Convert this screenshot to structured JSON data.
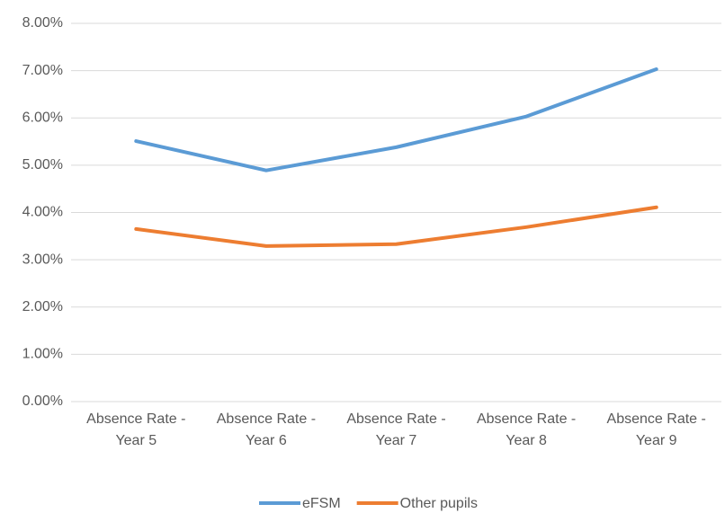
{
  "chart_data": {
    "type": "line",
    "categories": [
      "Absence Rate - Year 5",
      "Absence Rate - Year 6",
      "Absence Rate - Year 7",
      "Absence Rate - Year 8",
      "Absence Rate - Year 9"
    ],
    "series": [
      {
        "name": "eFSM",
        "color": "#5b9bd5",
        "values": [
          5.51,
          4.89,
          5.38,
          6.03,
          7.03
        ]
      },
      {
        "name": "Other pupils",
        "color": "#ed7d31",
        "values": [
          3.65,
          3.29,
          3.33,
          3.69,
          4.11
        ]
      }
    ],
    "ylim": [
      0,
      8
    ],
    "yticks": [
      {
        "value": 0,
        "label": "0.00%"
      },
      {
        "value": 1,
        "label": "1.00%"
      },
      {
        "value": 2,
        "label": "2.00%"
      },
      {
        "value": 3,
        "label": "3.00%"
      },
      {
        "value": 4,
        "label": "4.00%"
      },
      {
        "value": 5,
        "label": "5.00%"
      },
      {
        "value": 6,
        "label": "6.00%"
      },
      {
        "value": 7,
        "label": "7.00%"
      },
      {
        "value": 8,
        "label": "8.00%"
      }
    ],
    "grid": true,
    "legend": "bottom"
  }
}
